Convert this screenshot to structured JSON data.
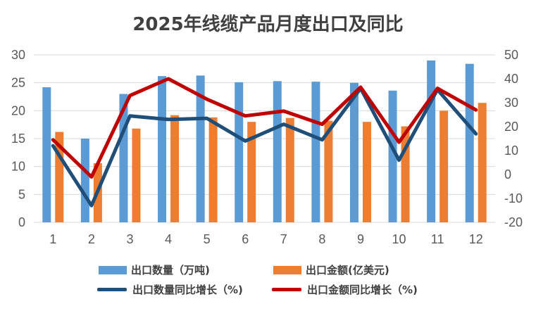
{
  "chart_data": {
    "type": "bar+line",
    "title": "2025年线缆产品月度出口及同比",
    "categories": [
      "1",
      "2",
      "3",
      "4",
      "5",
      "6",
      "7",
      "8",
      "9",
      "10",
      "11",
      "12"
    ],
    "y_left": {
      "ylim": [
        0,
        30
      ],
      "ticks": [
        "0",
        "5",
        "10",
        "15",
        "20",
        "25",
        "30"
      ]
    },
    "y_right": {
      "ylim": [
        -20,
        50
      ],
      "ticks": [
        "-20",
        "-10",
        "0",
        "10",
        "20",
        "30",
        "40",
        "50"
      ]
    },
    "series": [
      {
        "name": "出口数量（万吨)",
        "type": "bar",
        "axis": "left",
        "color": "#5B9BD5",
        "values": [
          24.2,
          15.0,
          23.0,
          26.2,
          26.3,
          25.1,
          25.3,
          25.2,
          25.0,
          23.6,
          29.0,
          28.4
        ]
      },
      {
        "name": "出口金额(亿美元)",
        "type": "bar",
        "axis": "left",
        "color": "#ED7D31",
        "values": [
          16.2,
          10.6,
          16.8,
          19.2,
          18.8,
          18.0,
          18.7,
          18.2,
          18.0,
          17.2,
          20.0,
          21.4
        ]
      },
      {
        "name": "出口数量同比增长（%)",
        "type": "line",
        "axis": "right",
        "color": "#1F4E79",
        "values": [
          12.0,
          -13.0,
          24.5,
          23.0,
          23.5,
          14.0,
          21.0,
          14.5,
          36.0,
          6.0,
          35.5,
          17.0
        ]
      },
      {
        "name": "出口金额同比增长（%)",
        "type": "line",
        "axis": "right",
        "color": "#C00000",
        "values": [
          14.5,
          -1.0,
          33.0,
          40.0,
          31.5,
          24.5,
          26.5,
          21.0,
          36.5,
          13.5,
          36.0,
          27.0
        ]
      }
    ]
  }
}
